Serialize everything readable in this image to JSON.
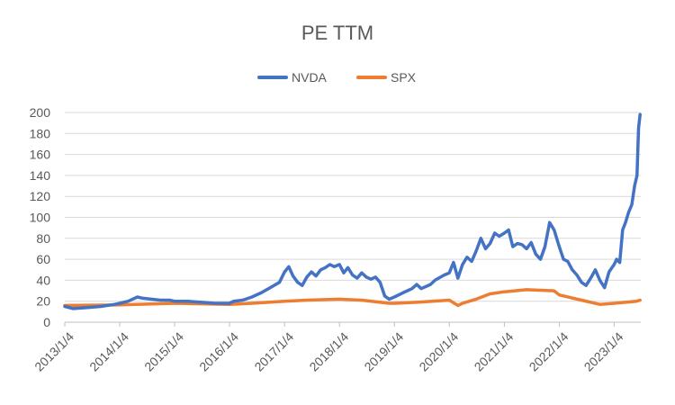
{
  "chart_data": {
    "type": "line",
    "title": "PE TTM",
    "xlabel": "",
    "ylabel": "",
    "ylim": [
      0,
      200
    ],
    "yticks": [
      "0",
      "20",
      "40",
      "60",
      "80",
      "100",
      "120",
      "140",
      "160",
      "180",
      "200"
    ],
    "xticks": [
      "2013/1/4",
      "2014/1/4",
      "2015/1/4",
      "2016/1/4",
      "2017/1/4",
      "2018/1/4",
      "2019/1/4",
      "2020/1/4",
      "2021/1/4",
      "2022/1/4",
      "2023/1/4"
    ],
    "legend_position": "top",
    "grid": "horizontal",
    "series": [
      {
        "name": "NVDA",
        "color": "#4472C4",
        "points": [
          [
            "2013-01-04",
            15
          ],
          [
            "2013-03-01",
            13
          ],
          [
            "2013-06-01",
            14
          ],
          [
            "2013-09-01",
            15
          ],
          [
            "2013-12-01",
            17
          ],
          [
            "2014-01-04",
            18
          ],
          [
            "2014-03-01",
            20
          ],
          [
            "2014-05-01",
            24
          ],
          [
            "2014-06-01",
            23
          ],
          [
            "2014-08-01",
            22
          ],
          [
            "2014-10-01",
            21
          ],
          [
            "2014-12-01",
            21
          ],
          [
            "2015-01-04",
            20
          ],
          [
            "2015-04-01",
            20
          ],
          [
            "2015-07-01",
            19
          ],
          [
            "2015-10-01",
            18
          ],
          [
            "2015-12-15",
            18
          ],
          [
            "2016-01-04",
            18
          ],
          [
            "2016-02-01",
            20
          ],
          [
            "2016-04-01",
            21
          ],
          [
            "2016-06-01",
            24
          ],
          [
            "2016-08-01",
            28
          ],
          [
            "2016-10-01",
            33
          ],
          [
            "2016-12-01",
            38
          ],
          [
            "2017-01-04",
            48
          ],
          [
            "2017-02-01",
            53
          ],
          [
            "2017-03-01",
            44
          ],
          [
            "2017-04-01",
            38
          ],
          [
            "2017-05-01",
            35
          ],
          [
            "2017-06-01",
            43
          ],
          [
            "2017-07-01",
            48
          ],
          [
            "2017-08-01",
            44
          ],
          [
            "2017-09-01",
            50
          ],
          [
            "2017-10-01",
            52
          ],
          [
            "2017-11-01",
            55
          ],
          [
            "2017-12-01",
            53
          ],
          [
            "2018-01-04",
            55
          ],
          [
            "2018-02-01",
            47
          ],
          [
            "2018-03-01",
            52
          ],
          [
            "2018-04-01",
            45
          ],
          [
            "2018-05-01",
            42
          ],
          [
            "2018-06-01",
            47
          ],
          [
            "2018-07-01",
            43
          ],
          [
            "2018-08-01",
            41
          ],
          [
            "2018-09-01",
            43
          ],
          [
            "2018-10-01",
            38
          ],
          [
            "2018-11-01",
            25
          ],
          [
            "2018-12-01",
            22
          ],
          [
            "2019-01-04",
            24
          ],
          [
            "2019-03-01",
            28
          ],
          [
            "2019-05-01",
            32
          ],
          [
            "2019-06-01",
            36
          ],
          [
            "2019-07-01",
            32
          ],
          [
            "2019-09-01",
            36
          ],
          [
            "2019-10-01",
            40
          ],
          [
            "2019-12-01",
            45
          ],
          [
            "2020-01-04",
            47
          ],
          [
            "2020-02-01",
            57
          ],
          [
            "2020-03-01",
            42
          ],
          [
            "2020-04-01",
            55
          ],
          [
            "2020-05-01",
            62
          ],
          [
            "2020-06-01",
            58
          ],
          [
            "2020-07-01",
            68
          ],
          [
            "2020-08-01",
            80
          ],
          [
            "2020-09-01",
            70
          ],
          [
            "2020-10-01",
            75
          ],
          [
            "2020-11-01",
            85
          ],
          [
            "2020-12-01",
            82
          ],
          [
            "2021-01-04",
            85
          ],
          [
            "2021-02-01",
            88
          ],
          [
            "2021-03-01",
            72
          ],
          [
            "2021-04-01",
            75
          ],
          [
            "2021-05-01",
            74
          ],
          [
            "2021-06-01",
            70
          ],
          [
            "2021-07-01",
            76
          ],
          [
            "2021-08-01",
            65
          ],
          [
            "2021-09-01",
            60
          ],
          [
            "2021-10-01",
            72
          ],
          [
            "2021-11-01",
            95
          ],
          [
            "2021-12-01",
            88
          ],
          [
            "2022-01-04",
            72
          ],
          [
            "2022-02-01",
            60
          ],
          [
            "2022-03-01",
            58
          ],
          [
            "2022-04-01",
            50
          ],
          [
            "2022-05-01",
            45
          ],
          [
            "2022-06-01",
            38
          ],
          [
            "2022-07-01",
            35
          ],
          [
            "2022-08-01",
            42
          ],
          [
            "2022-09-01",
            50
          ],
          [
            "2022-10-01",
            40
          ],
          [
            "2022-11-01",
            33
          ],
          [
            "2022-12-01",
            48
          ],
          [
            "2023-01-04",
            55
          ],
          [
            "2023-01-20",
            60
          ],
          [
            "2023-02-10",
            57
          ],
          [
            "2023-03-01",
            88
          ],
          [
            "2023-03-20",
            95
          ],
          [
            "2023-04-10",
            105
          ],
          [
            "2023-05-01",
            112
          ],
          [
            "2023-05-20",
            130
          ],
          [
            "2023-06-05",
            140
          ],
          [
            "2023-06-15",
            185
          ],
          [
            "2023-06-25",
            198
          ]
        ]
      },
      {
        "name": "SPX",
        "color": "#ED7D31",
        "points": [
          [
            "2013-01-04",
            16
          ],
          [
            "2014-01-04",
            16.5
          ],
          [
            "2015-01-04",
            18
          ],
          [
            "2016-01-04",
            17
          ],
          [
            "2016-06-01",
            18
          ],
          [
            "2017-01-04",
            20
          ],
          [
            "2017-06-01",
            21
          ],
          [
            "2018-01-04",
            22
          ],
          [
            "2018-06-01",
            21
          ],
          [
            "2018-12-01",
            18
          ],
          [
            "2019-01-04",
            18
          ],
          [
            "2019-06-01",
            19
          ],
          [
            "2020-01-04",
            21
          ],
          [
            "2020-03-01",
            16
          ],
          [
            "2020-04-01",
            18
          ],
          [
            "2020-07-01",
            22
          ],
          [
            "2020-10-01",
            27
          ],
          [
            "2021-01-04",
            29
          ],
          [
            "2021-06-01",
            31
          ],
          [
            "2021-12-01",
            30
          ],
          [
            "2022-01-04",
            26
          ],
          [
            "2022-06-01",
            21
          ],
          [
            "2022-10-01",
            17
          ],
          [
            "2023-01-04",
            18
          ],
          [
            "2023-06-01",
            20
          ],
          [
            "2023-06-25",
            21
          ]
        ]
      }
    ]
  }
}
